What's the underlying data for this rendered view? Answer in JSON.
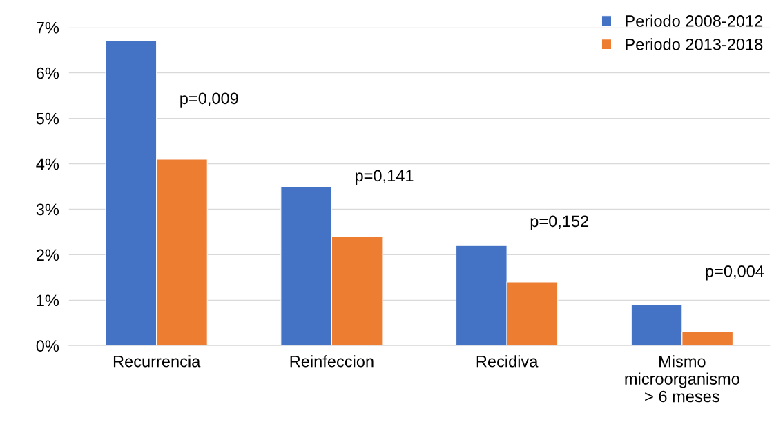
{
  "chart_data": {
    "type": "bar",
    "categories": [
      "Recurrencia",
      "Reinfeccion",
      "Recidiva",
      "Mismo\nmicroorganismo\n> 6 meses"
    ],
    "series": [
      {
        "name": "Periodo 2008-2012",
        "color": "#4472c4",
        "values": [
          6.7,
          3.5,
          2.2,
          0.9
        ]
      },
      {
        "name": "Periodo 2013-2018",
        "color": "#ed7d31",
        "values": [
          4.1,
          2.4,
          1.4,
          0.3
        ]
      }
    ],
    "ylim": [
      0,
      7
    ],
    "yticks": [
      {
        "value": 0,
        "label": "0%"
      },
      {
        "value": 1,
        "label": "1%"
      },
      {
        "value": 2,
        "label": "2%"
      },
      {
        "value": 3,
        "label": "3%"
      },
      {
        "value": 4,
        "label": "4%"
      },
      {
        "value": 5,
        "label": "5%"
      },
      {
        "value": 6,
        "label": "6%"
      },
      {
        "value": 7,
        "label": "7%"
      }
    ],
    "grid": "y",
    "legend": "top right",
    "annotations": [
      "p=0,009",
      "p=0,141",
      "p=0,152",
      "p=0,004"
    ]
  }
}
